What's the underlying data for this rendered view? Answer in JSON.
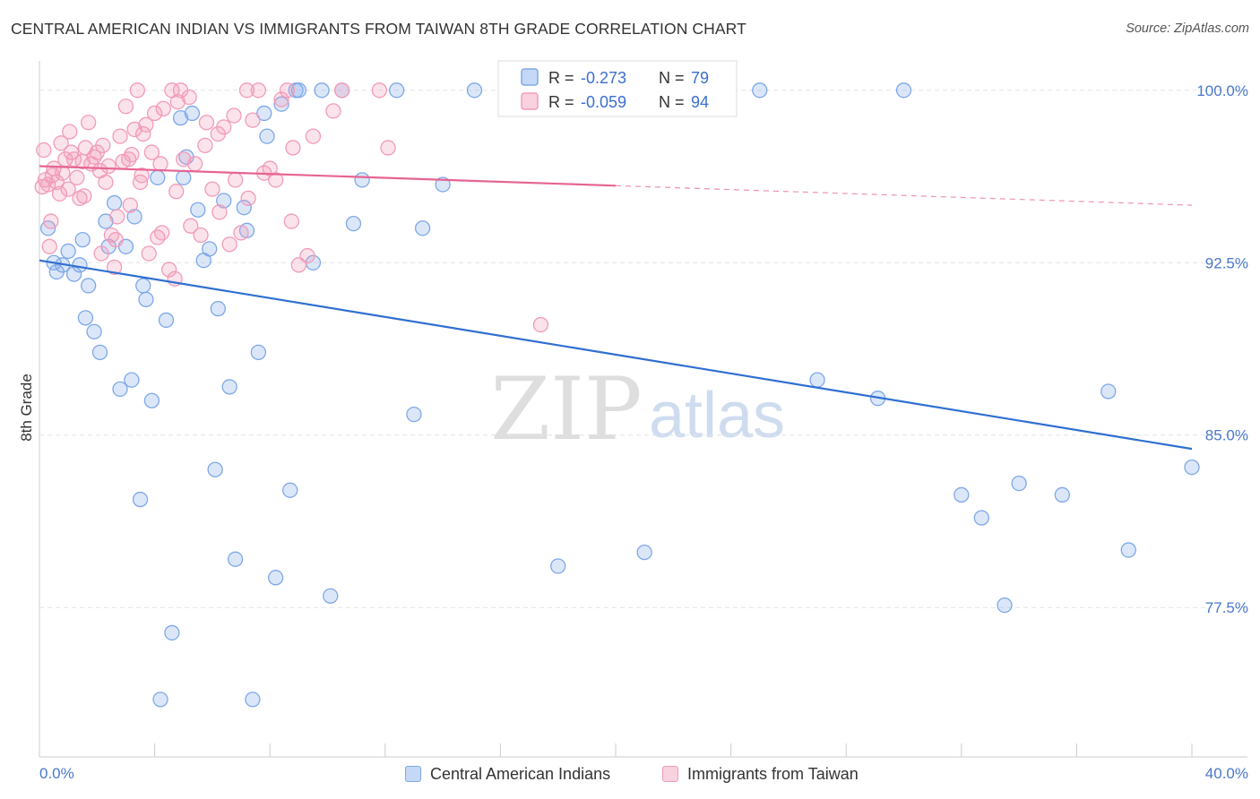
{
  "title": "CENTRAL AMERICAN INDIAN VS IMMIGRANTS FROM TAIWAN 8TH GRADE CORRELATION CHART",
  "source": "Source: ZipAtlas.com",
  "watermark": {
    "zip": "ZIP",
    "atlas": "atlas"
  },
  "chart_data": {
    "type": "scatter",
    "title": "CENTRAL AMERICAN INDIAN VS IMMIGRANTS FROM TAIWAN 8TH GRADE CORRELATION CHART",
    "xlabel": "",
    "ylabel": "8th Grade",
    "xlim": [
      0,
      40
    ],
    "ylim": [
      71.0,
      101.2
    ],
    "x_tick_labels": [
      "0.0%",
      "40.0%"
    ],
    "y_ticks": [
      100.0,
      92.5,
      85.0,
      77.5
    ],
    "y_tick_labels": [
      "100.0%",
      "92.5%",
      "85.0%",
      "77.5%"
    ],
    "grid": true,
    "legend_position": "top-center",
    "series": [
      {
        "name": "Central American Indians",
        "color": "#7ea8e8",
        "line_color": "#2f6fd1",
        "R": "-0.273",
        "N": "79",
        "trend": {
          "x": [
            0,
            40
          ],
          "y": [
            92.6,
            84.4
          ],
          "dashed_from": null
        },
        "points": [
          [
            0.3,
            94.0
          ],
          [
            0.5,
            92.5
          ],
          [
            0.6,
            92.1
          ],
          [
            0.8,
            92.4
          ],
          [
            1.0,
            93.0
          ],
          [
            1.2,
            92.0
          ],
          [
            1.4,
            92.4
          ],
          [
            1.5,
            93.5
          ],
          [
            1.6,
            90.1
          ],
          [
            1.7,
            91.5
          ],
          [
            1.9,
            89.5
          ],
          [
            2.1,
            88.6
          ],
          [
            2.3,
            94.3
          ],
          [
            2.4,
            93.2
          ],
          [
            2.6,
            95.1
          ],
          [
            2.8,
            87.0
          ],
          [
            3.0,
            93.2
          ],
          [
            3.2,
            87.4
          ],
          [
            3.3,
            94.5
          ],
          [
            3.5,
            82.2
          ],
          [
            3.6,
            91.5
          ],
          [
            3.7,
            90.9
          ],
          [
            3.9,
            86.5
          ],
          [
            4.1,
            96.2
          ],
          [
            4.2,
            73.5
          ],
          [
            4.4,
            90.0
          ],
          [
            4.6,
            76.4
          ],
          [
            4.9,
            98.8
          ],
          [
            5.0,
            96.2
          ],
          [
            5.1,
            97.1
          ],
          [
            5.3,
            99.0
          ],
          [
            5.5,
            94.8
          ],
          [
            5.7,
            92.6
          ],
          [
            5.9,
            93.1
          ],
          [
            6.1,
            83.5
          ],
          [
            6.2,
            90.5
          ],
          [
            6.4,
            95.2
          ],
          [
            6.6,
            87.1
          ],
          [
            6.8,
            79.6
          ],
          [
            7.1,
            94.9
          ],
          [
            7.2,
            93.9
          ],
          [
            7.4,
            73.5
          ],
          [
            7.6,
            88.6
          ],
          [
            7.8,
            99.0
          ],
          [
            7.9,
            98.0
          ],
          [
            8.2,
            78.8
          ],
          [
            8.4,
            99.4
          ],
          [
            8.7,
            82.6
          ],
          [
            8.9,
            100.0
          ],
          [
            9.0,
            100.0
          ],
          [
            9.5,
            92.5
          ],
          [
            9.8,
            100.0
          ],
          [
            10.1,
            78.0
          ],
          [
            10.5,
            100.0
          ],
          [
            10.9,
            94.2
          ],
          [
            11.2,
            96.1
          ],
          [
            12.4,
            100.0
          ],
          [
            13.0,
            85.9
          ],
          [
            13.3,
            94.0
          ],
          [
            14.0,
            95.9
          ],
          [
            15.1,
            100.0
          ],
          [
            16.2,
            100.0
          ],
          [
            17.6,
            100.0
          ],
          [
            18.0,
            79.3
          ],
          [
            19.3,
            100.0
          ],
          [
            21.0,
            79.9
          ],
          [
            22.3,
            100.0
          ],
          [
            25.0,
            100.0
          ],
          [
            27.0,
            87.4
          ],
          [
            29.1,
            86.6
          ],
          [
            30.0,
            100.0
          ],
          [
            32.0,
            82.4
          ],
          [
            32.7,
            81.4
          ],
          [
            33.5,
            77.6
          ],
          [
            34.0,
            82.9
          ],
          [
            35.5,
            82.4
          ],
          [
            37.1,
            86.9
          ],
          [
            37.8,
            80.0
          ],
          [
            40.0,
            83.6
          ]
        ]
      },
      {
        "name": "Immigrants from Taiwan",
        "color": "#f29bb8",
        "line_color": "#e66493",
        "R": "-0.059",
        "N": "94",
        "trend": {
          "x": [
            0,
            40
          ],
          "y": [
            96.7,
            95.0
          ],
          "dashed_from": 20
        },
        "points": [
          [
            0.1,
            95.8
          ],
          [
            0.2,
            96.1
          ],
          [
            0.3,
            95.9
          ],
          [
            0.4,
            94.3
          ],
          [
            0.5,
            96.6
          ],
          [
            0.6,
            96.0
          ],
          [
            0.7,
            95.5
          ],
          [
            0.8,
            96.4
          ],
          [
            0.9,
            97.0
          ],
          [
            1.0,
            95.7
          ],
          [
            1.1,
            97.3
          ],
          [
            1.2,
            97.0
          ],
          [
            1.3,
            96.2
          ],
          [
            1.4,
            95.3
          ],
          [
            1.5,
            96.9
          ],
          [
            1.6,
            97.5
          ],
          [
            1.7,
            98.6
          ],
          [
            1.8,
            96.8
          ],
          [
            1.9,
            97.1
          ],
          [
            2.0,
            97.3
          ],
          [
            2.1,
            96.5
          ],
          [
            2.2,
            97.6
          ],
          [
            2.3,
            96.0
          ],
          [
            2.4,
            96.7
          ],
          [
            2.5,
            93.7
          ],
          [
            2.6,
            92.3
          ],
          [
            2.7,
            94.5
          ],
          [
            2.8,
            98.0
          ],
          [
            2.9,
            96.9
          ],
          [
            3.0,
            99.3
          ],
          [
            3.1,
            97.0
          ],
          [
            3.2,
            97.2
          ],
          [
            3.3,
            98.3
          ],
          [
            3.4,
            100.0
          ],
          [
            3.5,
            96.0
          ],
          [
            3.6,
            98.1
          ],
          [
            3.7,
            98.5
          ],
          [
            3.8,
            92.9
          ],
          [
            3.9,
            97.3
          ],
          [
            4.0,
            99.0
          ],
          [
            4.1,
            93.6
          ],
          [
            4.2,
            96.8
          ],
          [
            4.3,
            99.2
          ],
          [
            4.5,
            92.2
          ],
          [
            4.6,
            100.0
          ],
          [
            4.7,
            91.8
          ],
          [
            4.8,
            99.5
          ],
          [
            4.9,
            100.0
          ],
          [
            5.0,
            97.0
          ],
          [
            5.2,
            99.7
          ],
          [
            5.4,
            96.8
          ],
          [
            5.6,
            93.7
          ],
          [
            5.8,
            98.6
          ],
          [
            6.0,
            95.7
          ],
          [
            6.2,
            98.1
          ],
          [
            6.4,
            98.4
          ],
          [
            6.6,
            93.3
          ],
          [
            6.8,
            96.1
          ],
          [
            7.0,
            93.8
          ],
          [
            7.2,
            100.0
          ],
          [
            7.4,
            98.7
          ],
          [
            7.6,
            100.0
          ],
          [
            7.8,
            96.4
          ],
          [
            8.0,
            96.6
          ],
          [
            8.2,
            96.1
          ],
          [
            8.4,
            99.6
          ],
          [
            8.6,
            100.0
          ],
          [
            8.8,
            97.5
          ],
          [
            9.0,
            92.4
          ],
          [
            9.3,
            92.8
          ],
          [
            10.5,
            100.0
          ],
          [
            11.8,
            100.0
          ],
          [
            12.1,
            97.5
          ],
          [
            17.4,
            89.8
          ],
          [
            0.15,
            97.4
          ],
          [
            0.35,
            93.2
          ],
          [
            1.05,
            98.2
          ],
          [
            1.55,
            95.4
          ],
          [
            2.15,
            92.9
          ],
          [
            2.65,
            93.5
          ],
          [
            3.15,
            95.0
          ],
          [
            3.55,
            96.3
          ],
          [
            4.25,
            93.8
          ],
          [
            4.75,
            95.6
          ],
          [
            5.25,
            94.1
          ],
          [
            5.75,
            97.6
          ],
          [
            6.25,
            94.7
          ],
          [
            6.75,
            98.9
          ],
          [
            7.25,
            95.3
          ],
          [
            8.75,
            94.3
          ],
          [
            9.5,
            98.0
          ],
          [
            10.2,
            99.1
          ],
          [
            0.45,
            96.3
          ],
          [
            0.75,
            97.7
          ]
        ]
      }
    ]
  }
}
